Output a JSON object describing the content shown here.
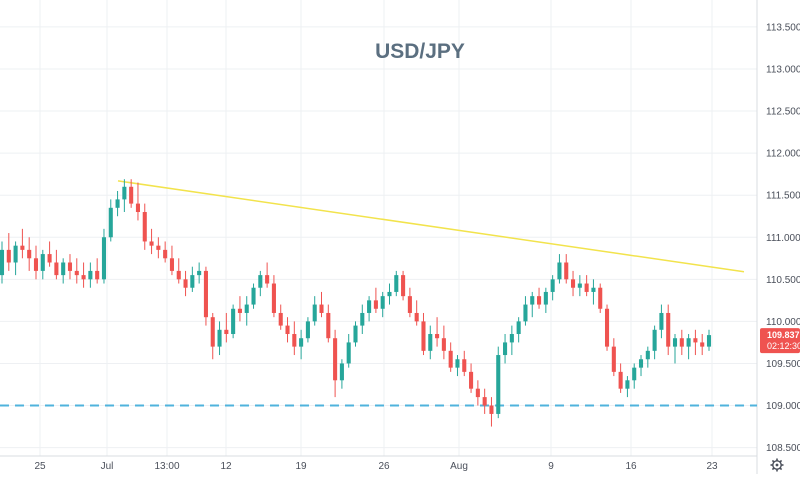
{
  "chart_data": {
    "type": "candlestick",
    "title": "USD/JPY",
    "xlabel": "",
    "ylabel": "",
    "ylim": [
      108.4,
      113.82
    ],
    "grid": true,
    "y_ticks": [
      "108.500",
      "109.000",
      "109.500",
      "110.000",
      "110.500",
      "111.000",
      "111.500",
      "112.000",
      "112.500",
      "113.000",
      "113.500"
    ],
    "x_ticks": [
      "25",
      "Jul",
      "13:00",
      "12",
      "19",
      "26",
      "Aug",
      "9",
      "16",
      "23"
    ],
    "current_price": {
      "value": 109.837,
      "label": "109.837",
      "countdown": "02:12:30",
      "color": "#ef5350"
    },
    "trendline": {
      "start": {
        "time": "Jul",
        "value": 111.67
      },
      "end": {
        "time": "after 23",
        "value": 110.59
      },
      "color": "#f2e34c"
    },
    "support_line": {
      "value": 109.0,
      "style": "dashed",
      "color": "#4fb3dc"
    },
    "colors": {
      "up": "#26a69a",
      "down": "#ef5350",
      "grid": "#eef0f3",
      "axis_text": "#4a4f5a"
    },
    "ohlc_series": [
      {
        "o": 110.55,
        "h": 110.95,
        "l": 110.45,
        "c": 110.85
      },
      {
        "o": 110.85,
        "h": 111.05,
        "l": 110.6,
        "c": 110.7
      },
      {
        "o": 110.7,
        "h": 110.95,
        "l": 110.55,
        "c": 110.9
      },
      {
        "o": 110.9,
        "h": 111.1,
        "l": 110.75,
        "c": 110.85
      },
      {
        "o": 110.85,
        "h": 111.0,
        "l": 110.6,
        "c": 110.75
      },
      {
        "o": 110.75,
        "h": 110.9,
        "l": 110.5,
        "c": 110.6
      },
      {
        "o": 110.6,
        "h": 110.85,
        "l": 110.5,
        "c": 110.8
      },
      {
        "o": 110.8,
        "h": 110.95,
        "l": 110.65,
        "c": 110.7
      },
      {
        "o": 110.7,
        "h": 110.85,
        "l": 110.5,
        "c": 110.55
      },
      {
        "o": 110.55,
        "h": 110.75,
        "l": 110.45,
        "c": 110.7
      },
      {
        "o": 110.7,
        "h": 110.8,
        "l": 110.5,
        "c": 110.6
      },
      {
        "o": 110.6,
        "h": 110.75,
        "l": 110.45,
        "c": 110.55
      },
      {
        "o": 110.55,
        "h": 110.7,
        "l": 110.4,
        "c": 110.5
      },
      {
        "o": 110.5,
        "h": 110.7,
        "l": 110.4,
        "c": 110.6
      },
      {
        "o": 110.6,
        "h": 110.75,
        "l": 110.45,
        "c": 110.5
      },
      {
        "o": 110.5,
        "h": 111.1,
        "l": 110.45,
        "c": 111.0
      },
      {
        "o": 111.0,
        "h": 111.45,
        "l": 110.95,
        "c": 111.35
      },
      {
        "o": 111.35,
        "h": 111.55,
        "l": 111.25,
        "c": 111.45
      },
      {
        "o": 111.45,
        "h": 111.69,
        "l": 111.3,
        "c": 111.6
      },
      {
        "o": 111.6,
        "h": 111.69,
        "l": 111.35,
        "c": 111.4
      },
      {
        "o": 111.4,
        "h": 111.65,
        "l": 111.2,
        "c": 111.3
      },
      {
        "o": 111.3,
        "h": 111.4,
        "l": 110.85,
        "c": 110.95
      },
      {
        "o": 110.95,
        "h": 111.1,
        "l": 110.8,
        "c": 110.9
      },
      {
        "o": 110.9,
        "h": 111.0,
        "l": 110.75,
        "c": 110.85
      },
      {
        "o": 110.85,
        "h": 110.95,
        "l": 110.7,
        "c": 110.75
      },
      {
        "o": 110.75,
        "h": 110.9,
        "l": 110.55,
        "c": 110.6
      },
      {
        "o": 110.6,
        "h": 110.75,
        "l": 110.45,
        "c": 110.5
      },
      {
        "o": 110.5,
        "h": 110.6,
        "l": 110.3,
        "c": 110.4
      },
      {
        "o": 110.4,
        "h": 110.65,
        "l": 110.35,
        "c": 110.55
      },
      {
        "o": 110.55,
        "h": 110.7,
        "l": 110.45,
        "c": 110.6
      },
      {
        "o": 110.6,
        "h": 110.65,
        "l": 109.95,
        "c": 110.05
      },
      {
        "o": 110.05,
        "h": 110.1,
        "l": 109.55,
        "c": 109.7
      },
      {
        "o": 109.7,
        "h": 110.0,
        "l": 109.6,
        "c": 109.9
      },
      {
        "o": 109.9,
        "h": 110.1,
        "l": 109.75,
        "c": 109.85
      },
      {
        "o": 109.85,
        "h": 110.2,
        "l": 109.8,
        "c": 110.15
      },
      {
        "o": 110.15,
        "h": 110.3,
        "l": 110.0,
        "c": 110.1
      },
      {
        "o": 110.1,
        "h": 110.3,
        "l": 109.95,
        "c": 110.2
      },
      {
        "o": 110.2,
        "h": 110.45,
        "l": 110.15,
        "c": 110.4
      },
      {
        "o": 110.4,
        "h": 110.6,
        "l": 110.3,
        "c": 110.55
      },
      {
        "o": 110.55,
        "h": 110.7,
        "l": 110.4,
        "c": 110.45
      },
      {
        "o": 110.45,
        "h": 110.55,
        "l": 110.05,
        "c": 110.1
      },
      {
        "o": 110.1,
        "h": 110.2,
        "l": 109.9,
        "c": 109.95
      },
      {
        "o": 109.95,
        "h": 110.05,
        "l": 109.75,
        "c": 109.85
      },
      {
        "o": 109.85,
        "h": 110.0,
        "l": 109.6,
        "c": 109.7
      },
      {
        "o": 109.7,
        "h": 109.9,
        "l": 109.55,
        "c": 109.8
      },
      {
        "o": 109.8,
        "h": 110.05,
        "l": 109.75,
        "c": 110.0
      },
      {
        "o": 110.0,
        "h": 110.3,
        "l": 109.95,
        "c": 110.2
      },
      {
        "o": 110.2,
        "h": 110.35,
        "l": 110.05,
        "c": 110.1
      },
      {
        "o": 110.1,
        "h": 110.2,
        "l": 109.75,
        "c": 109.8
      },
      {
        "o": 109.8,
        "h": 109.9,
        "l": 109.1,
        "c": 109.3
      },
      {
        "o": 109.3,
        "h": 109.55,
        "l": 109.2,
        "c": 109.5
      },
      {
        "o": 109.5,
        "h": 109.85,
        "l": 109.45,
        "c": 109.75
      },
      {
        "o": 109.75,
        "h": 110.0,
        "l": 109.7,
        "c": 109.95
      },
      {
        "o": 109.95,
        "h": 110.2,
        "l": 109.85,
        "c": 110.1
      },
      {
        "o": 110.1,
        "h": 110.3,
        "l": 110.0,
        "c": 110.25
      },
      {
        "o": 110.25,
        "h": 110.4,
        "l": 110.1,
        "c": 110.15
      },
      {
        "o": 110.15,
        "h": 110.35,
        "l": 110.05,
        "c": 110.3
      },
      {
        "o": 110.3,
        "h": 110.45,
        "l": 110.2,
        "c": 110.35
      },
      {
        "o": 110.35,
        "h": 110.6,
        "l": 110.3,
        "c": 110.55
      },
      {
        "o": 110.55,
        "h": 110.6,
        "l": 110.25,
        "c": 110.3
      },
      {
        "o": 110.3,
        "h": 110.4,
        "l": 110.05,
        "c": 110.1
      },
      {
        "o": 110.1,
        "h": 110.25,
        "l": 109.95,
        "c": 110.0
      },
      {
        "o": 110.0,
        "h": 110.1,
        "l": 109.6,
        "c": 109.65
      },
      {
        "o": 109.65,
        "h": 109.95,
        "l": 109.55,
        "c": 109.85
      },
      {
        "o": 109.85,
        "h": 110.05,
        "l": 109.7,
        "c": 109.8
      },
      {
        "o": 109.8,
        "h": 109.95,
        "l": 109.55,
        "c": 109.65
      },
      {
        "o": 109.65,
        "h": 109.75,
        "l": 109.4,
        "c": 109.45
      },
      {
        "o": 109.45,
        "h": 109.6,
        "l": 109.35,
        "c": 109.55
      },
      {
        "o": 109.55,
        "h": 109.65,
        "l": 109.35,
        "c": 109.4
      },
      {
        "o": 109.4,
        "h": 109.5,
        "l": 109.15,
        "c": 109.2
      },
      {
        "o": 109.2,
        "h": 109.3,
        "l": 109.0,
        "c": 109.1
      },
      {
        "o": 109.1,
        "h": 109.2,
        "l": 108.9,
        "c": 109.0
      },
      {
        "o": 109.0,
        "h": 109.1,
        "l": 108.75,
        "c": 108.9
      },
      {
        "o": 108.9,
        "h": 109.7,
        "l": 108.85,
        "c": 109.6
      },
      {
        "o": 109.6,
        "h": 109.85,
        "l": 109.5,
        "c": 109.75
      },
      {
        "o": 109.75,
        "h": 109.95,
        "l": 109.6,
        "c": 109.85
      },
      {
        "o": 109.85,
        "h": 110.05,
        "l": 109.75,
        "c": 110.0
      },
      {
        "o": 110.0,
        "h": 110.3,
        "l": 109.95,
        "c": 110.2
      },
      {
        "o": 110.2,
        "h": 110.35,
        "l": 110.05,
        "c": 110.3
      },
      {
        "o": 110.3,
        "h": 110.4,
        "l": 110.15,
        "c": 110.2
      },
      {
        "o": 110.2,
        "h": 110.4,
        "l": 110.1,
        "c": 110.35
      },
      {
        "o": 110.35,
        "h": 110.55,
        "l": 110.25,
        "c": 110.5
      },
      {
        "o": 110.5,
        "h": 110.8,
        "l": 110.45,
        "c": 110.7
      },
      {
        "o": 110.7,
        "h": 110.8,
        "l": 110.45,
        "c": 110.5
      },
      {
        "o": 110.5,
        "h": 110.6,
        "l": 110.3,
        "c": 110.4
      },
      {
        "o": 110.4,
        "h": 110.55,
        "l": 110.3,
        "c": 110.45
      },
      {
        "o": 110.45,
        "h": 110.55,
        "l": 110.3,
        "c": 110.35
      },
      {
        "o": 110.35,
        "h": 110.5,
        "l": 110.2,
        "c": 110.4
      },
      {
        "o": 110.4,
        "h": 110.45,
        "l": 110.1,
        "c": 110.15
      },
      {
        "o": 110.15,
        "h": 110.2,
        "l": 109.65,
        "c": 109.7
      },
      {
        "o": 109.7,
        "h": 109.8,
        "l": 109.35,
        "c": 109.4
      },
      {
        "o": 109.4,
        "h": 109.5,
        "l": 109.15,
        "c": 109.2
      },
      {
        "o": 109.2,
        "h": 109.35,
        "l": 109.1,
        "c": 109.3
      },
      {
        "o": 109.3,
        "h": 109.5,
        "l": 109.2,
        "c": 109.45
      },
      {
        "o": 109.45,
        "h": 109.6,
        "l": 109.35,
        "c": 109.55
      },
      {
        "o": 109.55,
        "h": 109.7,
        "l": 109.45,
        "c": 109.65
      },
      {
        "o": 109.65,
        "h": 109.95,
        "l": 109.55,
        "c": 109.9
      },
      {
        "o": 109.9,
        "h": 110.2,
        "l": 109.8,
        "c": 110.1
      },
      {
        "o": 110.1,
        "h": 110.2,
        "l": 109.6,
        "c": 109.7
      },
      {
        "o": 109.7,
        "h": 109.85,
        "l": 109.5,
        "c": 109.8
      },
      {
        "o": 109.8,
        "h": 109.9,
        "l": 109.6,
        "c": 109.7
      },
      {
        "o": 109.7,
        "h": 109.85,
        "l": 109.55,
        "c": 109.8
      },
      {
        "o": 109.8,
        "h": 109.9,
        "l": 109.6,
        "c": 109.75
      },
      {
        "o": 109.75,
        "h": 109.85,
        "l": 109.6,
        "c": 109.7
      },
      {
        "o": 109.7,
        "h": 109.9,
        "l": 109.65,
        "c": 109.837
      }
    ]
  }
}
